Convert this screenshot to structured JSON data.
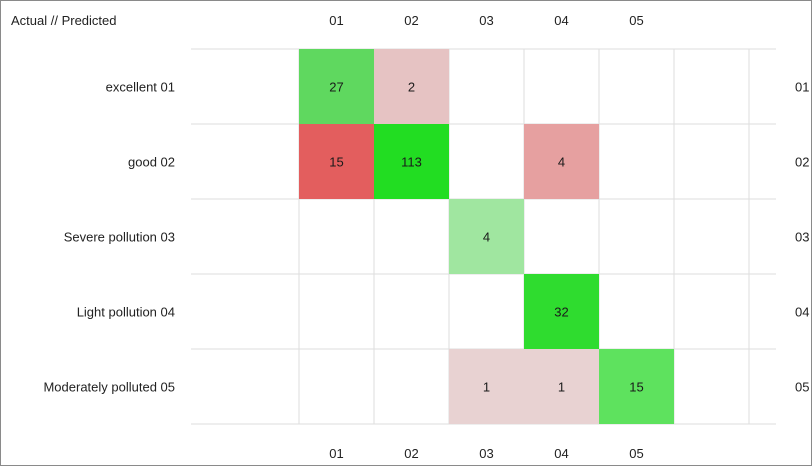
{
  "chart_data": {
    "type": "heatmap",
    "corner_label": "Actual // Predicted",
    "columns": [
      "01",
      "02",
      "03",
      "04",
      "05"
    ],
    "rows": [
      "excellent 01",
      "good 02",
      "Severe pollution 03",
      "Light pollution 04",
      "Moderately polluted 05"
    ],
    "right_labels": [
      "01",
      "02",
      "03",
      "04",
      "05"
    ],
    "values": [
      [
        27,
        2,
        null,
        null,
        null
      ],
      [
        15,
        113,
        null,
        4,
        null
      ],
      [
        null,
        null,
        4,
        null,
        null
      ],
      [
        null,
        null,
        null,
        32,
        null
      ],
      [
        null,
        null,
        1,
        1,
        15
      ]
    ],
    "cell_colors": [
      [
        "#5fd85f",
        "#e6c3c3",
        null,
        null,
        null
      ],
      [
        "#e35e5e",
        "#22dd22",
        null,
        "#e6a0a0",
        null
      ],
      [
        null,
        null,
        "#a0e6a0",
        null,
        null
      ],
      [
        null,
        null,
        null,
        "#2fdc2f",
        null
      ],
      [
        null,
        null,
        "#e8d2d2",
        "#e8d2d2",
        "#5ee25e"
      ]
    ],
    "grid_color": "#dddddd"
  }
}
